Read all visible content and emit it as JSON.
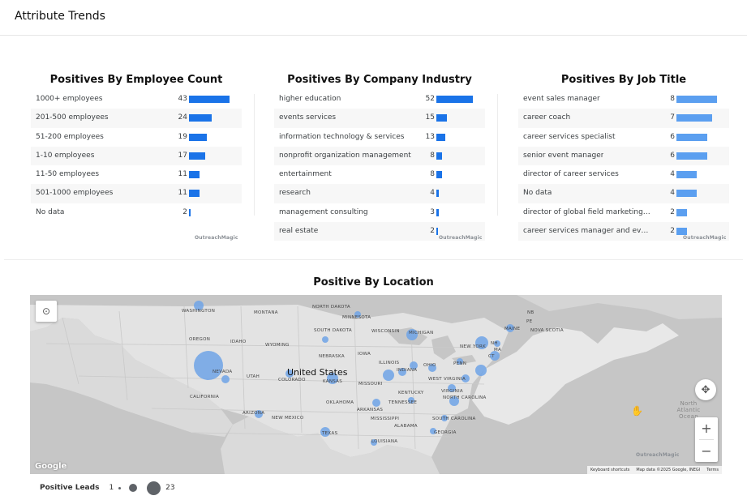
{
  "header": {
    "title": "Attribute Trends"
  },
  "colors": {
    "bar_primary": "#1a73e8",
    "bar_secondary": "#5b9ff0",
    "bubble": "#6fa3e6",
    "map_bg": "#c6c6c6",
    "land": "#e3e3e3"
  },
  "panels": [
    {
      "title": "Positives By Employee Count",
      "max": 43,
      "rows": [
        {
          "label": "1000+ employees",
          "value": 43
        },
        {
          "label": "201-500 employees",
          "value": 24
        },
        {
          "label": "51-200 employees",
          "value": 19
        },
        {
          "label": "1-10 employees",
          "value": 17
        },
        {
          "label": "11-50 employees",
          "value": 11
        },
        {
          "label": "501-1000 employees",
          "value": 11
        },
        {
          "label": "No data",
          "value": 2
        }
      ],
      "brand": "OutreachMagic"
    },
    {
      "title": "Positives By Company Industry",
      "max": 52,
      "rows": [
        {
          "label": "higher education",
          "value": 52
        },
        {
          "label": "events services",
          "value": 15
        },
        {
          "label": "information technology & services",
          "value": 13
        },
        {
          "label": "nonprofit organization management",
          "value": 8
        },
        {
          "label": "entertainment",
          "value": 8
        },
        {
          "label": "research",
          "value": 4
        },
        {
          "label": "management consulting",
          "value": 3
        },
        {
          "label": "real estate",
          "value": 2
        }
      ],
      "brand": "OutreachMagic"
    },
    {
      "title": "Positives By Job Title",
      "max": 8,
      "rows": [
        {
          "label": "event sales manager",
          "value": 8
        },
        {
          "label": "career coach",
          "value": 7
        },
        {
          "label": "career services specialist",
          "value": 6
        },
        {
          "label": "senior event manager",
          "value": 6
        },
        {
          "label": "director of career services",
          "value": 4
        },
        {
          "label": "No data",
          "value": 4
        },
        {
          "label": "director of global field marketing & ...",
          "value": 2
        },
        {
          "label": "career services manager and even...",
          "value": 2
        }
      ],
      "brand": "OutreachMagic"
    }
  ],
  "map": {
    "title": "Positive By Location",
    "country_label": "United States",
    "places": [
      "WASHINGTON",
      "MONTANA",
      "NORTH DAKOTA",
      "MINNESOTA",
      "OREGON",
      "IDAHO",
      "WYOMING",
      "SOUTH DAKOTA",
      "WISCONSIN",
      "MICHIGAN",
      "NEVADA",
      "UTAH",
      "NEBRASKA",
      "IOWA",
      "ILLINOIS",
      "INDIANA",
      "OHIO",
      "PENN",
      "NEW YORK",
      "NH",
      "MA",
      "CT",
      "MAINE",
      "NOVA SCOTIA",
      "NB",
      "PE",
      "CALIFORNIA",
      "COLORADO",
      "KANSAS",
      "MISSOURI",
      "KENTUCKY",
      "WEST VIRGINIA",
      "VIRGINIA",
      "NORTH CAROLINA",
      "TENNESSEE",
      "OKLAHOMA",
      "ARKANSAS",
      "ARIZONA",
      "NEW MEXICO",
      "MISSISSIPPI",
      "ALABAMA",
      "GEORGIA",
      "SOUTH CAROLINA",
      "TEXAS",
      "LOUISIANA"
    ],
    "water_label": "North Atlantic Ocean",
    "brand": "OutreachMagic",
    "google": "Google",
    "footer": [
      "Keyboard shortcuts",
      "Map data ©2025 Google, INEGI",
      "Terms"
    ],
    "zoom_in": "+",
    "zoom_out": "−"
  },
  "legend": {
    "title": "Positive Leads",
    "min": "1",
    "max": "23"
  }
}
